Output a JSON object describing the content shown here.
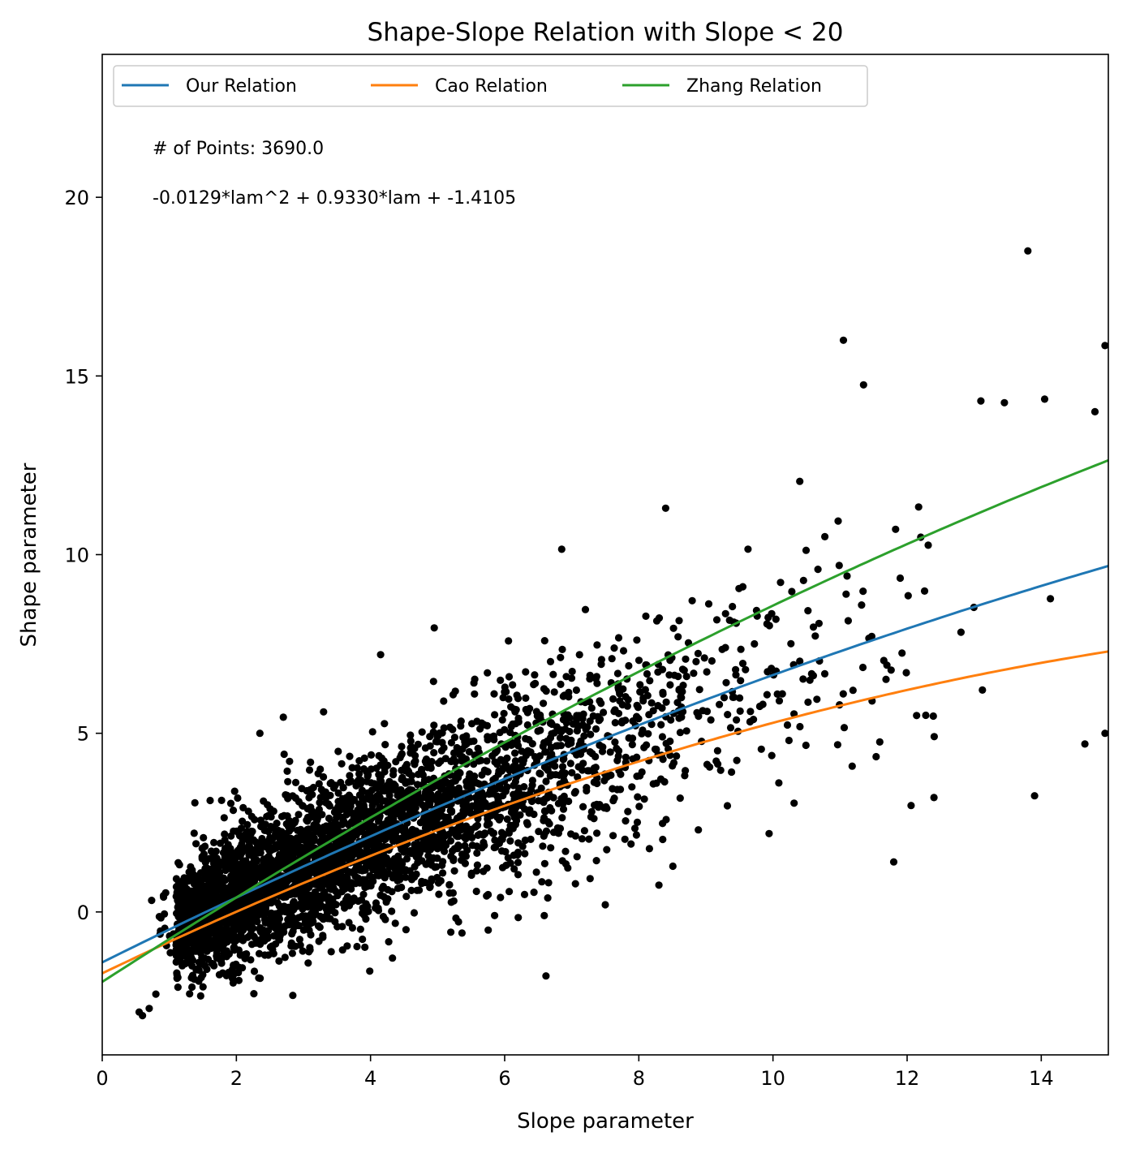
{
  "chart_data": {
    "type": "scatter",
    "title": "Shape-Slope Relation with Slope < 20",
    "xlabel": "Slope parameter",
    "ylabel": "Shape parameter",
    "xlim": [
      0,
      15
    ],
    "ylim": [
      -4,
      24
    ],
    "xticks": [
      0,
      2,
      4,
      6,
      8,
      10,
      12,
      14
    ],
    "yticks": [
      0,
      5,
      10,
      15,
      20
    ],
    "grid": false,
    "legend_position": "top-left",
    "annotations": [
      "# of Points: 3690.0",
      "-0.0129*lam^2 + 0.9330*lam + -1.4105"
    ],
    "scatter_color": "#000000",
    "series": [
      {
        "name": "Our Relation",
        "color": "#1f77b4",
        "coefficients": [
          -0.0129,
          0.933,
          -1.4105
        ]
      },
      {
        "name": "Cao Relation",
        "color": "#ff7f0e",
        "coefficients": [
          -0.0201,
          0.902,
          -1.718
        ]
      },
      {
        "name": "Zhang Relation",
        "color": "#2ca02c",
        "coefficients": [
          -0.016,
          1.213,
          -1.957
        ]
      }
    ],
    "sample_points": [
      [
        0.55,
        -2.8
      ],
      [
        0.6,
        -2.9
      ],
      [
        0.7,
        -2.7
      ],
      [
        0.8,
        -2.3
      ],
      [
        6.85,
        10.15
      ],
      [
        8.4,
        11.3
      ],
      [
        10.4,
        12.05
      ],
      [
        11.05,
        16.0
      ],
      [
        11.35,
        14.75
      ],
      [
        13.8,
        18.5
      ],
      [
        14.95,
        15.85
      ],
      [
        13.1,
        14.3
      ],
      [
        13.45,
        14.25
      ],
      [
        14.05,
        14.35
      ],
      [
        14.8,
        14.0
      ],
      [
        11.8,
        1.4
      ],
      [
        12.4,
        3.2
      ],
      [
        13.9,
        3.25
      ],
      [
        7.5,
        0.2
      ],
      [
        5.85,
        -0.1
      ],
      [
        14.95,
        5.0
      ],
      [
        14.65,
        4.7
      ],
      [
        4.95,
        7.95
      ],
      [
        4.15,
        7.2
      ],
      [
        3.3,
        5.6
      ],
      [
        2.7,
        5.45
      ],
      [
        2.35,
        5.0
      ],
      [
        8.3,
        0.75
      ]
    ],
    "n_points": 3690
  }
}
